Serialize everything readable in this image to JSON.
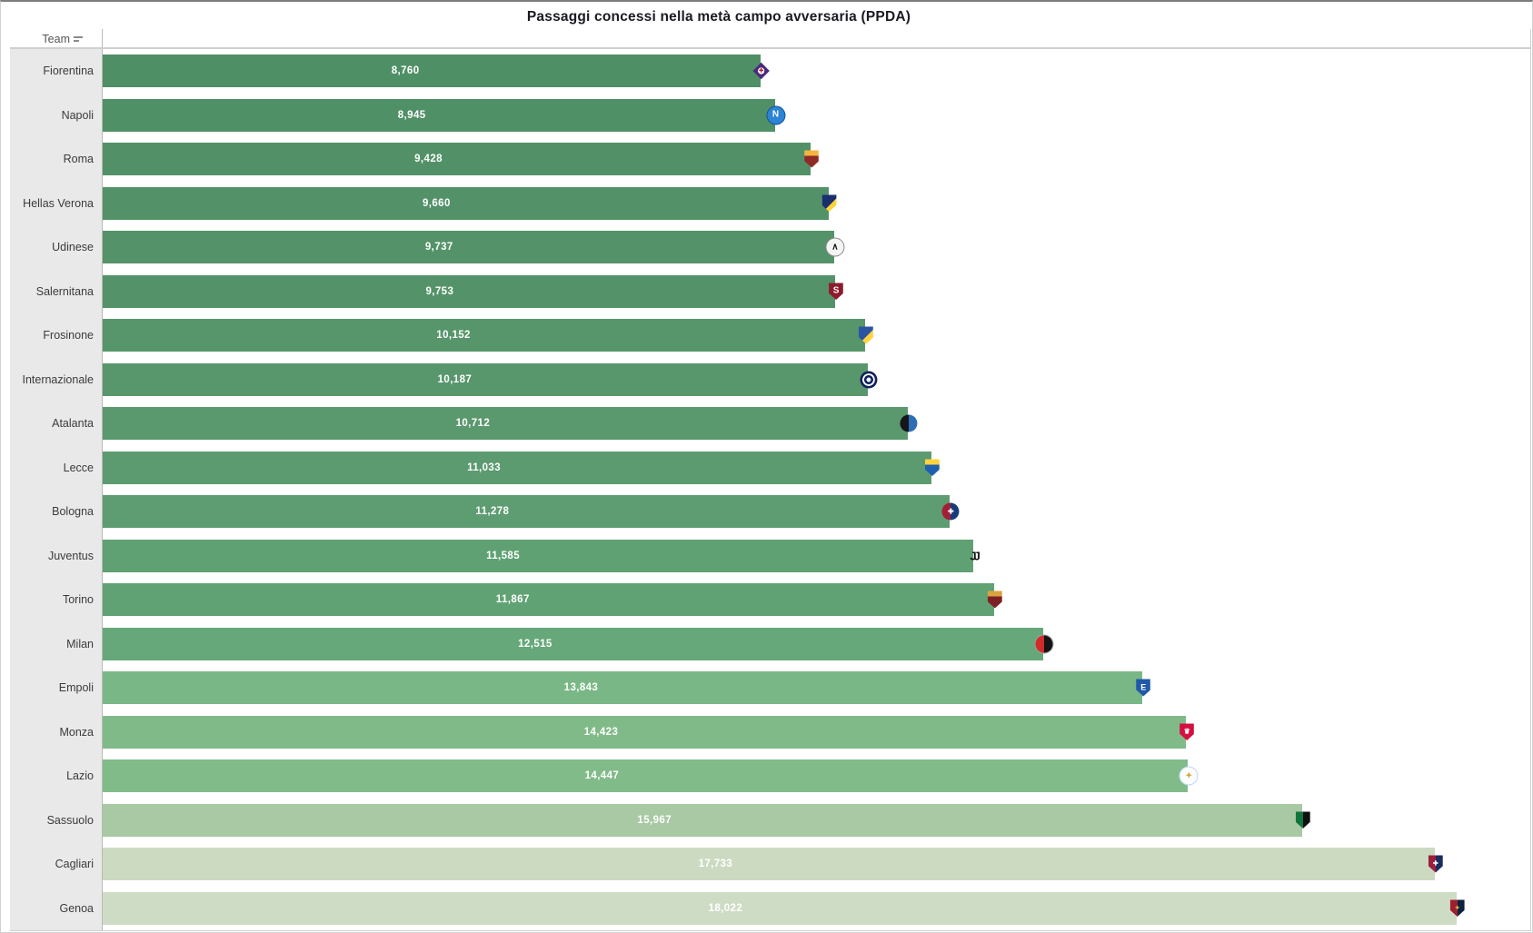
{
  "title": "Passaggi concessi nella metà campo avversaria (PPDA)",
  "column_header": {
    "label": "Team",
    "icon": "sort-icon"
  },
  "colors": {
    "bar_gradient_low": "#4f8f66",
    "bar_gradient_high": "#cfdcc5",
    "value_label": "#ffffff",
    "label_column_bg": "#e9e9e9",
    "row_label_text": "#3b3b3b",
    "header_text": "#555555",
    "grid_border": "#cfcfcf",
    "axis_divider": "#b9b9b9",
    "title_text": "#1a1a24"
  },
  "chart_data": {
    "type": "bar",
    "orientation": "horizontal",
    "title": "Passaggi concessi nella metà campo avversaria (PPDA)",
    "xlabel": "",
    "ylabel": "Team",
    "xlim": [
      0,
      18022
    ],
    "grid": false,
    "legend": "none",
    "sort": "ascending by value",
    "value_format": "#,##0",
    "categories": [
      "Fiorentina",
      "Napoli",
      "Roma",
      "Hellas Verona",
      "Udinese",
      "Salernitana",
      "Frosinone",
      "Internazionale",
      "Atalanta",
      "Lecce",
      "Bologna",
      "Juventus",
      "Torino",
      "Milan",
      "Empoli",
      "Monza",
      "Lazio",
      "Sassuolo",
      "Cagliari",
      "Genoa"
    ],
    "values": [
      8760,
      8945,
      9428,
      9660,
      9737,
      9753,
      10152,
      10187,
      10712,
      11033,
      11278,
      11585,
      11867,
      12515,
      13843,
      14423,
      14447,
      15967,
      17733,
      18022
    ],
    "bars": [
      {
        "team": "Fiorentina",
        "value": 8760,
        "label": "8,760",
        "color": "#4f8f66",
        "logo": {
          "shape": "diamond",
          "style": "center-dot",
          "colors": [
            "#4a2a7a",
            "#ffffff"
          ],
          "glyph": "✚",
          "glyph_color": "#c0112b",
          "glyph_size": 6
        }
      },
      {
        "team": "Napoli",
        "value": 8945,
        "label": "8,945",
        "color": "#509067",
        "logo": {
          "shape": "circle",
          "style": "solid",
          "colors": [
            "#2b84d4",
            "#15519c"
          ],
          "border": "#15519c",
          "glyph": "N",
          "glyph_color": "#ffffff",
          "glyph_size": 10
        }
      },
      {
        "team": "Roma",
        "value": 9428,
        "label": "9,428",
        "color": "#529168",
        "logo": {
          "shape": "shield",
          "style": "band-top",
          "colors": [
            "#8e2b25",
            "#f5b53f"
          ]
        }
      },
      {
        "team": "Hellas Verona",
        "value": 9660,
        "label": "9,660",
        "color": "#539269",
        "logo": {
          "shape": "shield",
          "style": "split-d",
          "colors": [
            "#1b2f6e",
            "#ffd437"
          ]
        }
      },
      {
        "team": "Udinese",
        "value": 9737,
        "label": "9,737",
        "color": "#549369",
        "logo": {
          "shape": "circle",
          "style": "solid",
          "colors": [
            "#f4f4f4",
            "#222222"
          ],
          "border": "#8a8a8a",
          "glyph": "∧",
          "glyph_color": "#1a1a1a",
          "glyph_size": 10
        }
      },
      {
        "team": "Salernitana",
        "value": 9753,
        "label": "9,753",
        "color": "#549369",
        "logo": {
          "shape": "shield",
          "style": "solid",
          "colors": [
            "#8c1c2c",
            "#ffffff"
          ],
          "glyph": "S",
          "glyph_color": "#ffffff",
          "glyph_size": 10
        }
      },
      {
        "team": "Frosinone",
        "value": 10152,
        "label": "10,152",
        "color": "#57956b",
        "logo": {
          "shape": "shield",
          "style": "split-d",
          "colors": [
            "#2b55a2",
            "#ffd23f"
          ]
        }
      },
      {
        "team": "Internazionale",
        "value": 10187,
        "label": "10,187",
        "color": "#58966c",
        "logo": {
          "shape": "circle",
          "style": "rings",
          "colors": [
            "#10215c",
            "#ffffff"
          ]
        }
      },
      {
        "team": "Atalanta",
        "value": 10712,
        "label": "10,712",
        "color": "#5a986e",
        "logo": {
          "shape": "circle",
          "style": "split-v",
          "colors": [
            "#15161a",
            "#2e6db4"
          ]
        }
      },
      {
        "team": "Lecce",
        "value": 11033,
        "label": "11,033",
        "color": "#5c9a70",
        "logo": {
          "shape": "shield",
          "style": "band-top",
          "colors": [
            "#1f5fae",
            "#ffd23f"
          ]
        }
      },
      {
        "team": "Bologna",
        "value": 11278,
        "label": "11,278",
        "color": "#5e9c71",
        "logo": {
          "shape": "circle",
          "style": "split-v",
          "colors": [
            "#a11f35",
            "#173b7a"
          ],
          "glyph": "✚",
          "glyph_color": "#ffffff",
          "glyph_size": 8
        }
      },
      {
        "team": "Juventus",
        "value": 11585,
        "label": "11,585",
        "color": "#5fa173",
        "logo": {
          "shape": "plain",
          "style": "plain",
          "colors": [
            "#141414",
            "#ffffff"
          ],
          "glyph": "JJ",
          "glyph_color": "#141414",
          "glyph_size": 13
        }
      },
      {
        "team": "Torino",
        "value": 11867,
        "label": "11,867",
        "color": "#61a274",
        "logo": {
          "shape": "shield",
          "style": "band-top",
          "colors": [
            "#7d2025",
            "#d9a43f"
          ]
        }
      },
      {
        "team": "Milan",
        "value": 12515,
        "label": "12,515",
        "color": "#66a87a",
        "logo": {
          "shape": "circle",
          "style": "split-v",
          "colors": [
            "#d22b2b",
            "#141414"
          ],
          "border": "#9e9e9e"
        }
      },
      {
        "team": "Empoli",
        "value": 13843,
        "label": "13,843",
        "color": "#79b886",
        "logo": {
          "shape": "shield",
          "style": "solid",
          "colors": [
            "#2059a8",
            "#ffffff"
          ],
          "glyph": "E",
          "glyph_color": "#ffffff",
          "glyph_size": 9
        }
      },
      {
        "team": "Monza",
        "value": 14423,
        "label": "14,423",
        "color": "#80ba89",
        "logo": {
          "shape": "shield",
          "style": "solid",
          "colors": [
            "#d40f3f",
            "#ffffff"
          ],
          "glyph": "♛",
          "glyph_color": "#ffffff",
          "glyph_size": 8
        }
      },
      {
        "team": "Lazio",
        "value": 14447,
        "label": "14,447",
        "color": "#81bb8a",
        "logo": {
          "shape": "circle",
          "style": "solid",
          "colors": [
            "#fbfdfe",
            "#b8d8ea"
          ],
          "border": "#b8d8ea",
          "glyph": "✦",
          "glyph_color": "#d4a531",
          "glyph_size": 9
        }
      },
      {
        "team": "Sassuolo",
        "value": 15967,
        "label": "15,967",
        "color": "#a8c9a3",
        "logo": {
          "shape": "shield",
          "style": "split-v",
          "colors": [
            "#12753c",
            "#101010"
          ]
        }
      },
      {
        "team": "Cagliari",
        "value": 17733,
        "label": "17,733",
        "color": "#ccdac2",
        "logo": {
          "shape": "shield",
          "style": "split-v",
          "colors": [
            "#9c1f3d",
            "#1b2c5e"
          ],
          "glyph": "✚",
          "glyph_color": "#ffffff",
          "glyph_size": 7
        }
      },
      {
        "team": "Genoa",
        "value": 18022,
        "label": "18,022",
        "color": "#cfdcc5",
        "logo": {
          "shape": "shield",
          "style": "split-v",
          "colors": [
            "#9c1f2e",
            "#0a2240"
          ],
          "glyph": "✦",
          "glyph_color": "#e8b93e",
          "glyph_size": 7
        }
      }
    ]
  }
}
